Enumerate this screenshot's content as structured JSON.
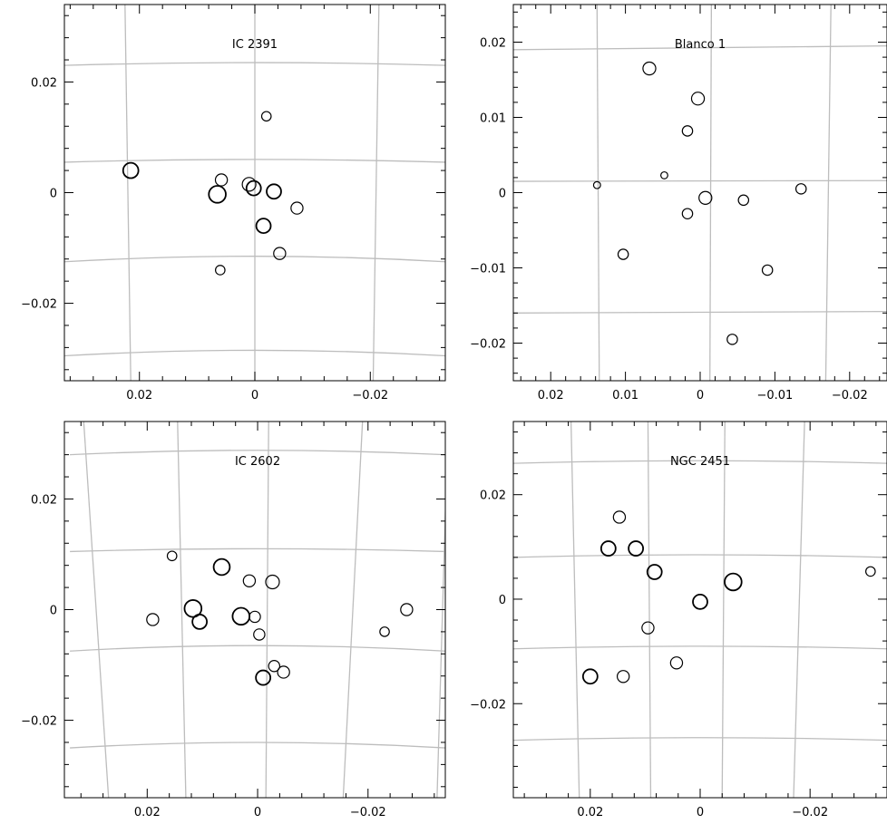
{
  "chart_data": [
    {
      "type": "scatter",
      "title": "IC 2391",
      "xlim": [
        0.033,
        -0.033
      ],
      "ylim": [
        -0.034,
        0.034
      ],
      "xticks": [
        0.02,
        0,
        -0.02
      ],
      "xtick_labels": [
        "0.02",
        "0",
        "−0.02"
      ],
      "yticks": [
        0.02,
        0,
        -0.02
      ],
      "ytick_labels": [
        "0.02",
        "0",
        "−0.02"
      ],
      "grid": true,
      "points": [
        {
          "x": 0.0215,
          "y": 0.004,
          "s": 1.4
        },
        {
          "x": 0.0065,
          "y": -0.0003,
          "s": 1.6
        },
        {
          "x": 0.0058,
          "y": 0.0023,
          "s": 1.0
        },
        {
          "x": 0.001,
          "y": 0.0015,
          "s": 1.2
        },
        {
          "x": 0.0002,
          "y": 0.0008,
          "s": 1.3
        },
        {
          "x": -0.0033,
          "y": 0.0002,
          "s": 1.3
        },
        {
          "x": -0.0073,
          "y": -0.0028,
          "s": 1.0
        },
        {
          "x": -0.0015,
          "y": -0.006,
          "s": 1.3
        },
        {
          "x": -0.0043,
          "y": -0.011,
          "s": 1.0
        },
        {
          "x": 0.006,
          "y": -0.014,
          "s": 0.7
        },
        {
          "x": -0.002,
          "y": 0.0138,
          "s": 0.7
        }
      ],
      "grid_lines": {
        "h": [
          [
            -0.033,
            0.023,
            0,
            0.0235,
            0.033,
            0.023
          ],
          [
            -0.033,
            0.0055,
            0,
            0.006,
            0.033,
            0.0055
          ],
          [
            -0.033,
            -0.0125,
            0,
            -0.0115,
            0.033,
            -0.0125
          ],
          [
            -0.033,
            -0.0295,
            0,
            -0.0285,
            0.033,
            -0.0295
          ]
        ],
        "v": [
          [
            0.0225,
            0.034,
            0.0215,
            -0.034
          ],
          [
            0,
            0.034,
            0,
            -0.034
          ],
          [
            -0.0215,
            0.034,
            -0.0205,
            -0.034
          ]
        ]
      }
    },
    {
      "type": "scatter",
      "title": "Blanco 1",
      "xlim": [
        0.025,
        -0.025
      ],
      "ylim": [
        -0.025,
        0.025
      ],
      "xticks": [
        0.02,
        0.01,
        0,
        -0.01,
        -0.02
      ],
      "xtick_labels": [
        "0.02",
        "0.01",
        "0",
        "−0.01",
        "−0.02"
      ],
      "yticks": [
        0.02,
        0.01,
        0,
        -0.01,
        -0.02
      ],
      "ytick_labels": [
        "0.02",
        "0.01",
        "0",
        "−0.01",
        "−0.02"
      ],
      "grid": true,
      "points": [
        {
          "x": 0.0068,
          "y": 0.0165,
          "s": 1.1
        },
        {
          "x": 0.0003,
          "y": 0.0125,
          "s": 1.1
        },
        {
          "x": 0.0017,
          "y": 0.0082,
          "s": 0.8
        },
        {
          "x": 0.0048,
          "y": 0.0023,
          "s": 0.4
        },
        {
          "x": 0.0138,
          "y": 0.001,
          "s": 0.4
        },
        {
          "x": -0.0007,
          "y": -0.0007,
          "s": 1.1
        },
        {
          "x": -0.0058,
          "y": -0.001,
          "s": 0.8
        },
        {
          "x": -0.0135,
          "y": 0.0005,
          "s": 0.8
        },
        {
          "x": 0.0017,
          "y": -0.0028,
          "s": 0.8
        },
        {
          "x": 0.0103,
          "y": -0.0082,
          "s": 0.8
        },
        {
          "x": -0.009,
          "y": -0.0103,
          "s": 0.8
        },
        {
          "x": -0.0043,
          "y": -0.0195,
          "s": 0.8
        }
      ],
      "grid_lines": {
        "h": [
          [
            0.025,
            0.019,
            -0.025,
            0.0195
          ],
          [
            0.025,
            0.0015,
            -0.025,
            0.0016
          ],
          [
            0.025,
            -0.016,
            -0.025,
            -0.0158
          ]
        ],
        "v": [
          [
            0.0138,
            0.025,
            0.0135,
            -0.025
          ],
          [
            -0.0015,
            0.025,
            -0.0013,
            -0.025
          ],
          [
            -0.0175,
            0.025,
            -0.0168,
            -0.025
          ]
        ]
      }
    },
    {
      "type": "scatter",
      "title": "IC 2602",
      "xlim": [
        0.035,
        -0.034
      ],
      "ylim": [
        -0.034,
        0.034
      ],
      "xticks": [
        0.02,
        0,
        -0.02
      ],
      "xtick_labels": [
        "0.02",
        "0",
        "−0.02"
      ],
      "yticks": [
        0.02,
        0,
        -0.02
      ],
      "ytick_labels": [
        "0.02",
        "0",
        "−0.02"
      ],
      "grid": true,
      "points": [
        {
          "x": 0.0155,
          "y": 0.0097,
          "s": 0.7
        },
        {
          "x": 0.0065,
          "y": 0.0077,
          "s": 1.5
        },
        {
          "x": 0.0015,
          "y": 0.0052,
          "s": 1.0
        },
        {
          "x": -0.0027,
          "y": 0.005,
          "s": 1.2
        },
        {
          "x": 0.019,
          "y": -0.0018,
          "s": 1.0
        },
        {
          "x": 0.0117,
          "y": 0.0002,
          "s": 1.6
        },
        {
          "x": 0.0105,
          "y": -0.0022,
          "s": 1.3
        },
        {
          "x": 0.003,
          "y": -0.0012,
          "s": 1.6
        },
        {
          "x": 0.0005,
          "y": -0.0013,
          "s": 0.9
        },
        {
          "x": -0.0003,
          "y": -0.0045,
          "s": 0.9
        },
        {
          "x": -0.003,
          "y": -0.0102,
          "s": 0.9
        },
        {
          "x": -0.0047,
          "y": -0.0113,
          "s": 1.0
        },
        {
          "x": -0.001,
          "y": -0.0123,
          "s": 1.3
        },
        {
          "x": -0.023,
          "y": -0.004,
          "s": 0.7
        },
        {
          "x": -0.027,
          "y": 0.0,
          "s": 1.0
        }
      ],
      "grid_lines": {
        "h": [
          [
            0.034,
            0.028,
            0,
            0.0288,
            -0.034,
            0.028
          ],
          [
            0.034,
            0.0105,
            0,
            0.011,
            -0.034,
            0.0105
          ],
          [
            0.034,
            -0.0075,
            0,
            -0.0065,
            -0.034,
            -0.0075
          ],
          [
            0.034,
            -0.025,
            0,
            -0.024,
            -0.034,
            -0.025
          ]
        ],
        "v": [
          [
            0.0315,
            0.034,
            0.027,
            -0.034
          ],
          [
            0.0145,
            0.034,
            0.013,
            -0.034
          ],
          [
            -0.002,
            0.034,
            -0.0015,
            -0.034
          ],
          [
            -0.019,
            0.034,
            -0.0155,
            -0.034
          ],
          [
            -0.0345,
            0.034,
            -0.0325,
            -0.034
          ]
        ]
      }
    },
    {
      "type": "scatter",
      "title": "NGC 2451",
      "xlim": [
        0.034,
        -0.034
      ],
      "ylim": [
        -0.038,
        0.034
      ],
      "xticks": [
        0.02,
        0,
        -0.02
      ],
      "xtick_labels": [
        "0.02",
        "0",
        "−0.02"
      ],
      "yticks": [
        0.02,
        0,
        -0.02
      ],
      "ytick_labels": [
        "0.02",
        "0",
        "−0.02"
      ],
      "grid": true,
      "points": [
        {
          "x": 0.0147,
          "y": 0.0157,
          "s": 1.0
        },
        {
          "x": 0.0167,
          "y": 0.0097,
          "s": 1.3
        },
        {
          "x": 0.0117,
          "y": 0.0097,
          "s": 1.3
        },
        {
          "x": 0.0083,
          "y": 0.0052,
          "s": 1.3
        },
        {
          "x": -0.006,
          "y": 0.0033,
          "s": 1.6
        },
        {
          "x": 0.0,
          "y": -0.0005,
          "s": 1.3
        },
        {
          "x": 0.0095,
          "y": -0.0055,
          "s": 1.0
        },
        {
          "x": 0.0043,
          "y": -0.0122,
          "s": 1.0
        },
        {
          "x": 0.02,
          "y": -0.0148,
          "s": 1.3
        },
        {
          "x": 0.014,
          "y": -0.0148,
          "s": 1.0
        },
        {
          "x": -0.031,
          "y": 0.0053,
          "s": 0.7
        }
      ],
      "grid_lines": {
        "h": [
          [
            0.034,
            0.026,
            0,
            0.0265,
            -0.034,
            0.026
          ],
          [
            0.034,
            0.008,
            0,
            0.0085,
            -0.034,
            0.008
          ],
          [
            0.034,
            -0.0095,
            0,
            -0.009,
            -0.034,
            -0.0095
          ],
          [
            0.034,
            -0.027,
            0,
            -0.0265,
            -0.034,
            -0.027
          ]
        ],
        "v": [
          [
            0.0235,
            0.034,
            0.022,
            -0.038
          ],
          [
            0.0095,
            0.034,
            0.009,
            -0.038
          ],
          [
            -0.0045,
            0.034,
            -0.004,
            -0.038
          ],
          [
            -0.019,
            0.034,
            -0.017,
            -0.038
          ]
        ]
      }
    }
  ]
}
